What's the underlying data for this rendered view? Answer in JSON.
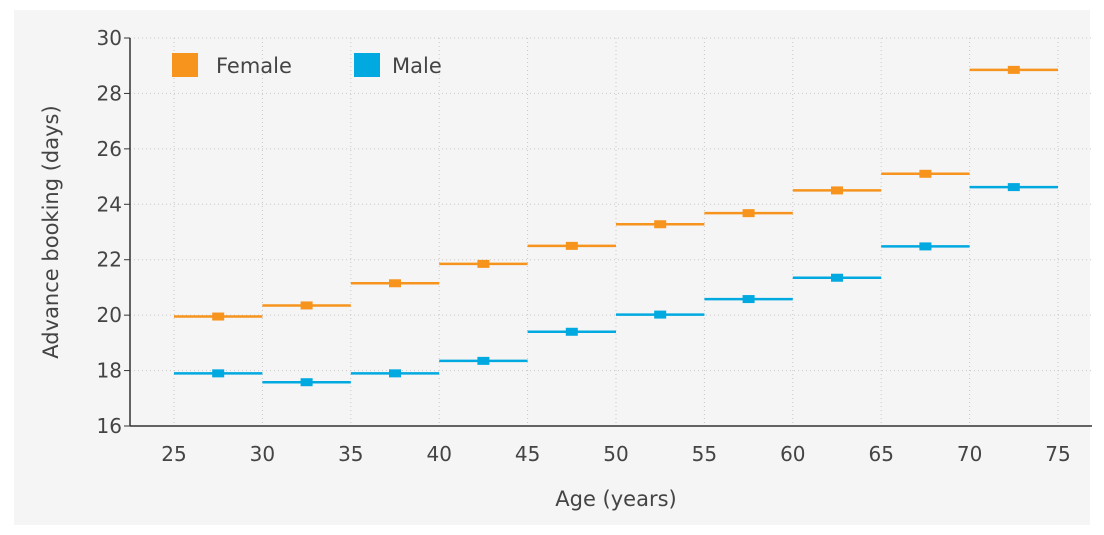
{
  "chart_data": {
    "type": "line",
    "title": "",
    "xlabel": "Age (years)",
    "ylabel": "Advance booking (days)",
    "xlim": [
      25,
      75
    ],
    "ylim": [
      16,
      30
    ],
    "x_ticks": [
      25,
      30,
      35,
      40,
      45,
      50,
      55,
      60,
      65,
      70,
      75
    ],
    "y_ticks": [
      16,
      18,
      20,
      22,
      24,
      26,
      28,
      30
    ],
    "bins": [
      [
        25,
        30
      ],
      [
        30,
        35
      ],
      [
        35,
        40
      ],
      [
        40,
        45
      ],
      [
        45,
        50
      ],
      [
        50,
        55
      ],
      [
        55,
        60
      ],
      [
        60,
        65
      ],
      [
        65,
        70
      ],
      [
        70,
        75
      ]
    ],
    "grid": true,
    "legend_position": "top-left",
    "series": [
      {
        "name": "Female",
        "color": "#f7941d",
        "values": [
          19.95,
          20.35,
          21.15,
          21.85,
          22.5,
          23.28,
          23.68,
          24.5,
          25.1,
          28.85
        ]
      },
      {
        "name": "Male",
        "color": "#00a9e0",
        "values": [
          17.9,
          17.58,
          17.9,
          18.35,
          19.4,
          20.02,
          20.58,
          21.35,
          22.48,
          24.62
        ]
      }
    ]
  }
}
